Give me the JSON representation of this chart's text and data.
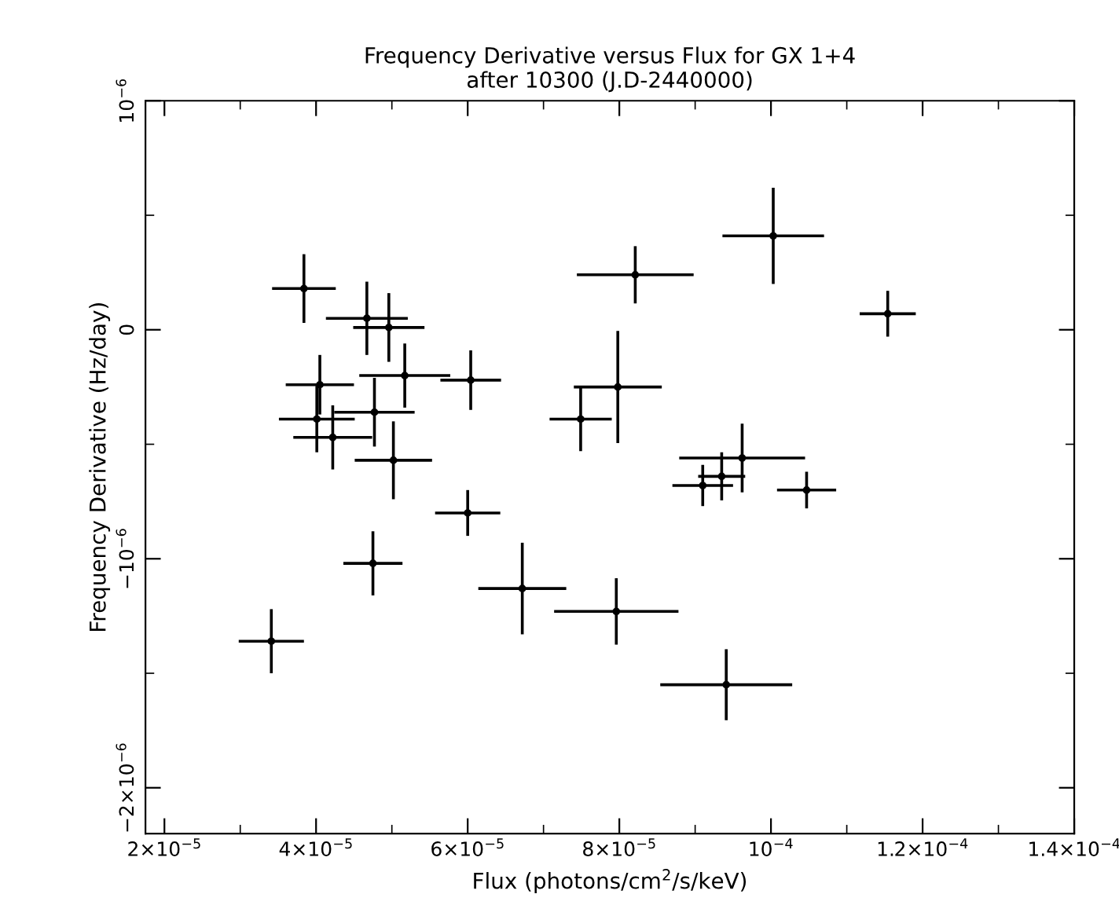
{
  "chart_data": {
    "type": "scatter",
    "title": "Frequency Derivative versus Flux for GX 1+4\nafter 10300 (J.D-2440000)",
    "xlabel": "Flux (photons/cm$^{2}$/s/keV)",
    "ylabel": "Frequency Derivative (Hz/day)",
    "marker": "circle",
    "grid": false,
    "legend": false,
    "color": "#000000",
    "x": [
      3.84e-05,
      4.67e-05,
      4.96e-05,
      4.05e-05,
      5.17e-05,
      6.04e-05,
      4.77e-05,
      4.01e-05,
      4.22e-05,
      5.02e-05,
      6e-05,
      4.75e-05,
      6.72e-05,
      7.96e-05,
      3.41e-05,
      9.41e-05,
      8.21e-05,
      0.0001003,
      0.0001154,
      7.98e-05,
      7.49e-05,
      9.62e-05,
      9.1e-05,
      9.35e-05,
      0.0001047
    ],
    "values": [
      1.8e-07,
      5e-08,
      1e-08,
      -2.4e-07,
      -2e-07,
      -2.2e-07,
      -3.6e-07,
      -3.9e-07,
      -4.7e-07,
      -5.7e-07,
      -8e-07,
      -1.02e-06,
      -1.13e-06,
      -1.23e-06,
      -1.36e-06,
      -1.55e-06,
      2.4e-07,
      4.1e-07,
      7e-08,
      -2.5e-07,
      -3.9e-07,
      -5.6e-07,
      -6.8e-07,
      -6.4e-07,
      -7e-07
    ],
    "errors": [
      1.5e-07,
      1.6e-07,
      1.5e-07,
      1.3e-07,
      1.4e-07,
      1.3e-07,
      1.5e-07,
      1.45e-07,
      1.4e-07,
      1.7e-07,
      1e-07,
      1.4e-07,
      2e-07,
      1.45e-07,
      1.4e-07,
      1.55e-07,
      1.25e-07,
      2.1e-07,
      1e-07,
      2.45e-07,
      1.4e-07,
      1.5e-07,
      9e-08,
      1.05e-07,
      8e-08
    ],
    "xerrors": [
      4.2e-06,
      5.4e-06,
      4.7e-06,
      4.5e-06,
      6e-06,
      4e-06,
      5.3e-06,
      5e-06,
      5.2e-06,
      5.1e-06,
      4.3e-06,
      3.9e-06,
      5.8e-06,
      8.2e-06,
      4.3e-06,
      8.7e-06,
      7.7e-06,
      6.7e-06,
      3.7e-06,
      5.8e-06,
      4.1e-06,
      8.3e-06,
      4e-06,
      3.1e-06,
      3.9e-06
    ],
    "xlim": [
      1.75e-05,
      0.00014
    ],
    "xticks": [
      {
        "value": 2e-05,
        "label": "2×10$^{−5}$"
      },
      {
        "value": 4e-05,
        "label": "4×10$^{−5}$"
      },
      {
        "value": 6e-05,
        "label": "6×10$^{−5}$"
      },
      {
        "value": 8e-05,
        "label": "8×10$^{−5}$"
      },
      {
        "value": 0.0001,
        "label": "10$^{−4}$"
      },
      {
        "value": 0.00012,
        "label": "1.2×10$^{−4}$"
      },
      {
        "value": 0.00014,
        "label": "1.4×10$^{−4}$"
      }
    ],
    "ylim": [
      -2.2e-06,
      1e-06
    ],
    "yticks": [
      {
        "value": -2e-06,
        "label": "−2×10$^{−6}$"
      },
      {
        "value": -1e-06,
        "label": "−10$^{−6}$"
      },
      0,
      {
        "value": 1e-06,
        "label": "10$^{−6}$"
      }
    ]
  }
}
